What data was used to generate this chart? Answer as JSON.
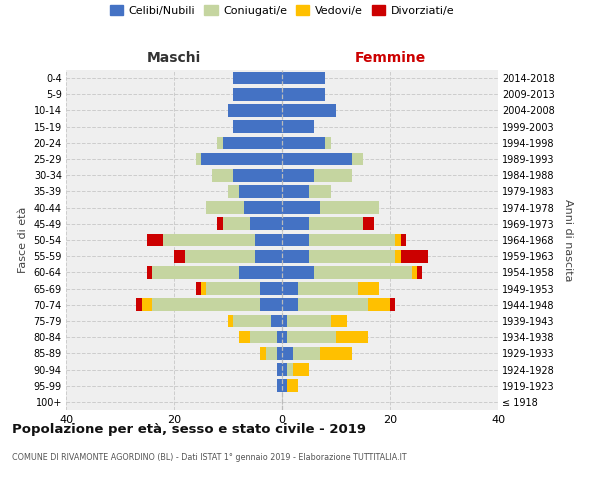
{
  "age_groups": [
    "100+",
    "95-99",
    "90-94",
    "85-89",
    "80-84",
    "75-79",
    "70-74",
    "65-69",
    "60-64",
    "55-59",
    "50-54",
    "45-49",
    "40-44",
    "35-39",
    "30-34",
    "25-29",
    "20-24",
    "15-19",
    "10-14",
    "5-9",
    "0-4"
  ],
  "birth_years": [
    "≤ 1918",
    "1919-1923",
    "1924-1928",
    "1929-1933",
    "1934-1938",
    "1939-1943",
    "1944-1948",
    "1949-1953",
    "1954-1958",
    "1959-1963",
    "1964-1968",
    "1969-1973",
    "1974-1978",
    "1979-1983",
    "1984-1988",
    "1989-1993",
    "1994-1998",
    "1999-2003",
    "2004-2008",
    "2009-2013",
    "2014-2018"
  ],
  "colors": {
    "celibi": "#4472c4",
    "coniugati": "#c5d5a0",
    "vedovi": "#ffc000",
    "divorziati": "#cc0000"
  },
  "maschi": {
    "celibi": [
      0,
      1,
      1,
      1,
      1,
      2,
      4,
      4,
      8,
      5,
      5,
      6,
      7,
      8,
      9,
      15,
      11,
      9,
      10,
      9,
      9
    ],
    "coniugati": [
      0,
      0,
      0,
      2,
      5,
      7,
      20,
      10,
      16,
      13,
      17,
      5,
      7,
      2,
      4,
      1,
      1,
      0,
      0,
      0,
      0
    ],
    "vedovi": [
      0,
      0,
      0,
      1,
      2,
      1,
      2,
      1,
      0,
      0,
      0,
      0,
      0,
      0,
      0,
      0,
      0,
      0,
      0,
      0,
      0
    ],
    "divorziati": [
      0,
      0,
      0,
      0,
      0,
      0,
      1,
      1,
      1,
      2,
      3,
      1,
      0,
      0,
      0,
      0,
      0,
      0,
      0,
      0,
      0
    ]
  },
  "femmine": {
    "celibi": [
      0,
      1,
      1,
      2,
      1,
      1,
      3,
      3,
      6,
      5,
      5,
      5,
      7,
      5,
      6,
      13,
      8,
      6,
      10,
      8,
      8
    ],
    "coniugati": [
      0,
      0,
      1,
      5,
      9,
      8,
      13,
      11,
      18,
      16,
      16,
      10,
      11,
      4,
      7,
      2,
      1,
      0,
      0,
      0,
      0
    ],
    "vedovi": [
      0,
      2,
      3,
      6,
      6,
      3,
      4,
      4,
      1,
      1,
      1,
      0,
      0,
      0,
      0,
      0,
      0,
      0,
      0,
      0,
      0
    ],
    "divorziati": [
      0,
      0,
      0,
      0,
      0,
      0,
      1,
      0,
      1,
      5,
      1,
      2,
      0,
      0,
      0,
      0,
      0,
      0,
      0,
      0,
      0
    ]
  },
  "title": "Popolazione per età, sesso e stato civile - 2019",
  "subtitle": "COMUNE DI RIVAMONTE AGORDINO (BL) - Dati ISTAT 1° gennaio 2019 - Elaborazione TUTTITALIA.IT",
  "label_maschi": "Maschi",
  "label_femmine": "Femmine",
  "ylabel_left": "Fasce di età",
  "ylabel_right": "Anni di nascita",
  "legend_labels": [
    "Celibi/Nubili",
    "Coniugati/e",
    "Vedovi/e",
    "Divorziati/e"
  ],
  "xlim": 40,
  "bg_color": "#efefef"
}
